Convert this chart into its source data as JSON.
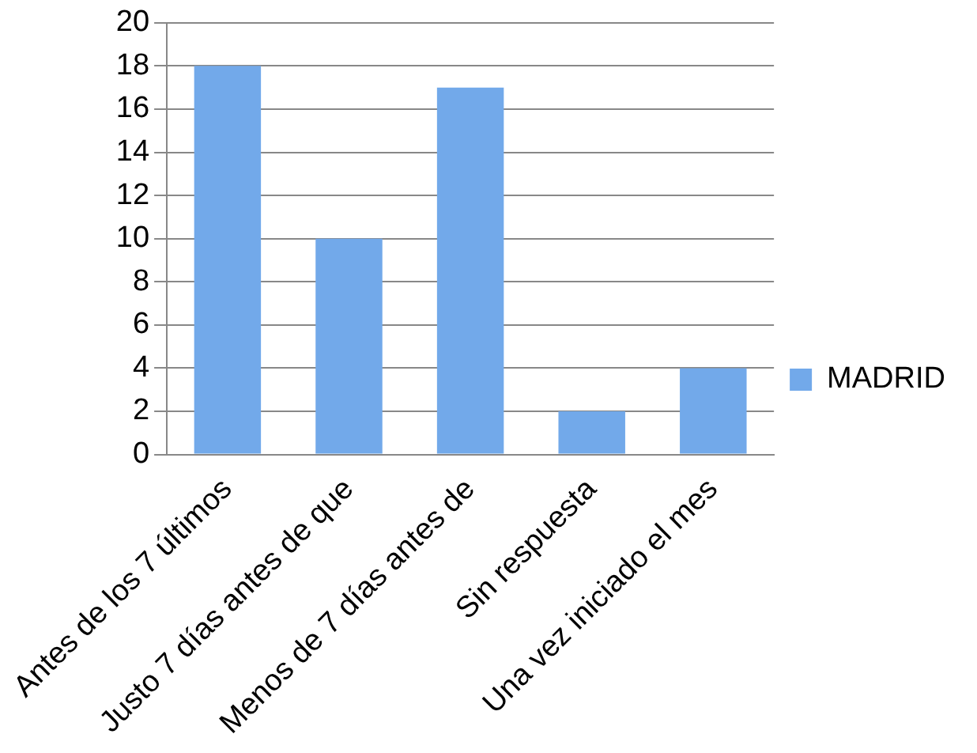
{
  "chart_data": {
    "type": "bar",
    "categories": [
      "Antes de los 7 últimos",
      "Justo 7 días antes de que",
      "Menos de 7 días antes de",
      "Sin respuesta",
      "Una vez iniciado el mes"
    ],
    "series": [
      {
        "name": "MADRID",
        "color": "#72a9ea",
        "values": [
          18,
          10,
          17,
          2,
          4
        ]
      }
    ],
    "ylim": [
      0,
      20
    ],
    "yticks": [
      0,
      2,
      4,
      6,
      8,
      10,
      12,
      14,
      16,
      18,
      20
    ],
    "grid": "y",
    "legend": "right"
  }
}
